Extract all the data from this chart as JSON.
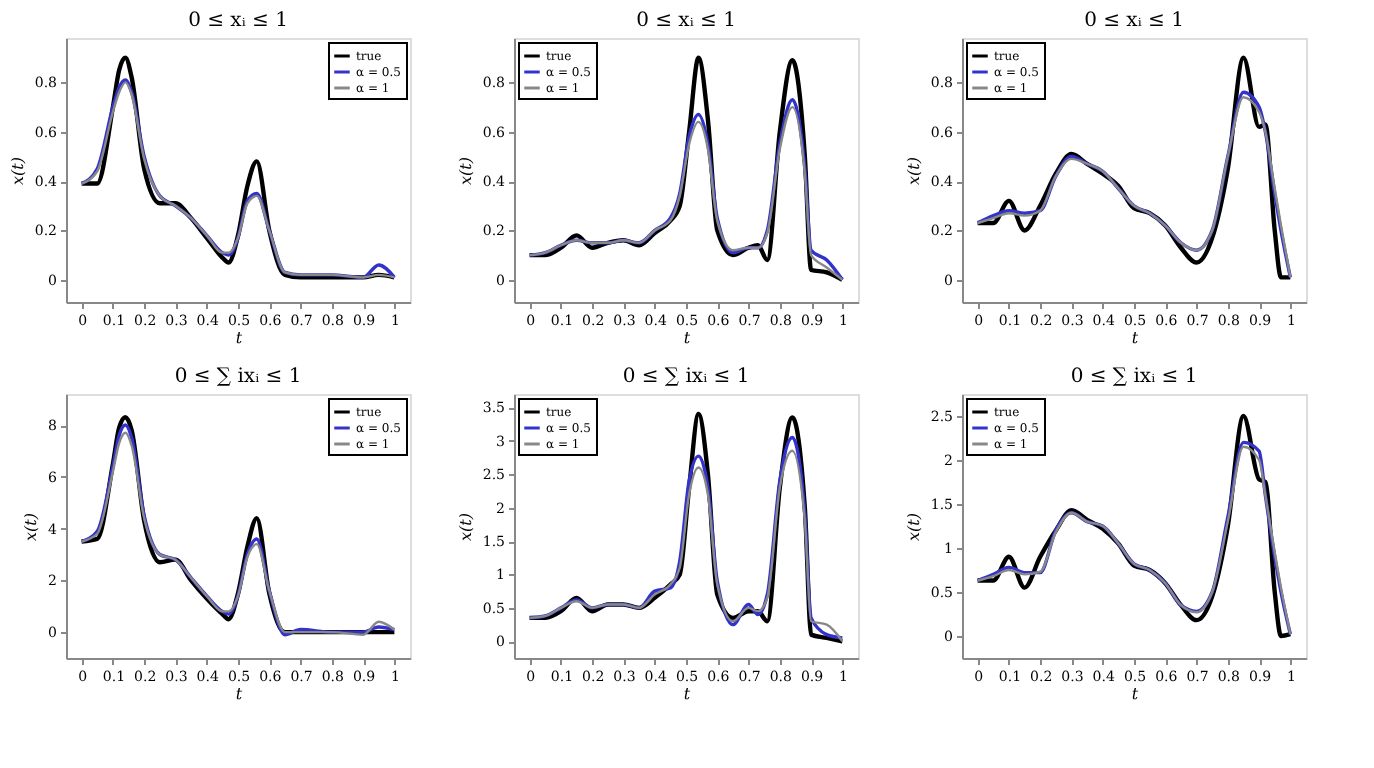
{
  "chart_data": [
    {
      "type": "line",
      "title": "0 ≤ xᵢ ≤ 1",
      "xlabel": "t",
      "ylabel": "x(t)",
      "xlim": [
        -0.05,
        1.05
      ],
      "xticks": [
        0,
        0.1,
        0.2,
        0.3,
        0.4,
        0.5,
        0.6,
        0.7,
        0.8,
        0.9,
        1
      ],
      "ylim": [
        -0.09,
        0.98
      ],
      "yticks": [
        0,
        0.2,
        0.4,
        0.6,
        0.8
      ],
      "legend": "top right",
      "grid": false,
      "marker": "none",
      "line_style": "solid",
      "x": [
        0,
        0.05,
        0.1,
        0.12,
        0.14,
        0.16,
        0.2,
        0.25,
        0.3,
        0.35,
        0.4,
        0.45,
        0.47,
        0.5,
        0.53,
        0.56,
        0.6,
        0.65,
        0.7,
        0.8,
        0.9,
        0.95,
        1
      ],
      "series": [
        {
          "name": "true",
          "color": "#000000",
          "values": [
            0.39,
            0.39,
            0.7,
            0.85,
            0.9,
            0.82,
            0.45,
            0.31,
            0.31,
            0.25,
            0.17,
            0.09,
            0.07,
            0.18,
            0.38,
            0.48,
            0.2,
            0.02,
            0.01,
            0.01,
            0.01,
            0.02,
            0.01
          ]
        },
        {
          "name": "α = 0.5",
          "color": "#3333cc",
          "values": [
            0.39,
            0.45,
            0.7,
            0.78,
            0.81,
            0.76,
            0.5,
            0.34,
            0.3,
            0.25,
            0.18,
            0.11,
            0.1,
            0.17,
            0.32,
            0.35,
            0.2,
            0.03,
            0.02,
            0.02,
            0.01,
            0.06,
            0.01
          ]
        },
        {
          "name": "α = 1",
          "color": "#888888",
          "values": [
            0.39,
            0.44,
            0.68,
            0.76,
            0.8,
            0.75,
            0.49,
            0.34,
            0.3,
            0.25,
            0.18,
            0.11,
            0.11,
            0.17,
            0.31,
            0.34,
            0.2,
            0.03,
            0.02,
            0.02,
            0.01,
            0.02,
            0.01
          ]
        }
      ]
    },
    {
      "type": "line",
      "title": "0 ≤ xᵢ ≤ 1",
      "xlabel": "t",
      "ylabel": "x(t)",
      "xlim": [
        -0.05,
        1.05
      ],
      "xticks": [
        0,
        0.1,
        0.2,
        0.3,
        0.4,
        0.5,
        0.6,
        0.7,
        0.8,
        0.9,
        1
      ],
      "ylim": [
        -0.09,
        0.98
      ],
      "yticks": [
        0,
        0.2,
        0.4,
        0.6,
        0.8
      ],
      "legend": "top left",
      "grid": false,
      "marker": "none",
      "line_style": "solid",
      "x": [
        0,
        0.05,
        0.1,
        0.15,
        0.2,
        0.25,
        0.3,
        0.35,
        0.4,
        0.45,
        0.48,
        0.51,
        0.54,
        0.57,
        0.6,
        0.65,
        0.7,
        0.73,
        0.76,
        0.8,
        0.84,
        0.88,
        0.9,
        0.95,
        1
      ],
      "series": [
        {
          "name": "true",
          "color": "#000000",
          "values": [
            0.1,
            0.1,
            0.13,
            0.18,
            0.13,
            0.15,
            0.16,
            0.14,
            0.19,
            0.24,
            0.3,
            0.6,
            0.9,
            0.65,
            0.2,
            0.1,
            0.13,
            0.14,
            0.08,
            0.6,
            0.89,
            0.5,
            0.04,
            0.03,
            0.0
          ]
        },
        {
          "name": "α = 0.5",
          "color": "#3333cc",
          "values": [
            0.1,
            0.11,
            0.14,
            0.16,
            0.15,
            0.15,
            0.16,
            0.15,
            0.2,
            0.25,
            0.35,
            0.58,
            0.67,
            0.55,
            0.25,
            0.11,
            0.13,
            0.13,
            0.2,
            0.55,
            0.73,
            0.45,
            0.12,
            0.08,
            0.0
          ]
        },
        {
          "name": "α = 1",
          "color": "#888888",
          "values": [
            0.1,
            0.11,
            0.14,
            0.16,
            0.15,
            0.15,
            0.16,
            0.15,
            0.2,
            0.24,
            0.34,
            0.55,
            0.64,
            0.53,
            0.24,
            0.12,
            0.13,
            0.13,
            0.19,
            0.53,
            0.7,
            0.43,
            0.1,
            0.05,
            0.0
          ]
        }
      ]
    },
    {
      "type": "line",
      "title": "0 ≤ xᵢ ≤ 1",
      "xlabel": "t",
      "ylabel": "x(t)",
      "xlim": [
        -0.05,
        1.05
      ],
      "xticks": [
        0,
        0.1,
        0.2,
        0.3,
        0.4,
        0.5,
        0.6,
        0.7,
        0.8,
        0.9,
        1
      ],
      "ylim": [
        -0.09,
        0.98
      ],
      "yticks": [
        0,
        0.2,
        0.4,
        0.6,
        0.8
      ],
      "legend": "top left",
      "grid": false,
      "marker": "none",
      "line_style": "solid",
      "x": [
        0,
        0.05,
        0.1,
        0.15,
        0.2,
        0.25,
        0.3,
        0.35,
        0.4,
        0.45,
        0.5,
        0.55,
        0.6,
        0.65,
        0.7,
        0.75,
        0.8,
        0.85,
        0.9,
        0.92,
        0.95,
        0.97,
        1
      ],
      "series": [
        {
          "name": "true",
          "color": "#000000",
          "values": [
            0.23,
            0.23,
            0.32,
            0.2,
            0.3,
            0.43,
            0.51,
            0.47,
            0.43,
            0.38,
            0.29,
            0.27,
            0.22,
            0.13,
            0.07,
            0.17,
            0.45,
            0.9,
            0.62,
            0.63,
            0.2,
            0.01,
            0.01
          ]
        },
        {
          "name": "α = 0.5",
          "color": "#3333cc",
          "values": [
            0.23,
            0.26,
            0.28,
            0.27,
            0.28,
            0.42,
            0.5,
            0.47,
            0.44,
            0.37,
            0.3,
            0.27,
            0.22,
            0.15,
            0.12,
            0.2,
            0.5,
            0.76,
            0.7,
            0.6,
            0.35,
            0.2,
            0.01
          ]
        },
        {
          "name": "α = 1",
          "color": "#888888",
          "values": [
            0.23,
            0.25,
            0.27,
            0.26,
            0.28,
            0.42,
            0.49,
            0.47,
            0.44,
            0.37,
            0.3,
            0.27,
            0.22,
            0.15,
            0.12,
            0.2,
            0.5,
            0.74,
            0.68,
            0.6,
            0.37,
            0.22,
            0.01
          ]
        }
      ]
    },
    {
      "type": "line",
      "title": "0 ≤ ∑ ixᵢ ≤ 1",
      "xlabel": "t",
      "ylabel": "x(t)",
      "xlim": [
        -0.05,
        1.05
      ],
      "xticks": [
        0,
        0.1,
        0.2,
        0.3,
        0.4,
        0.5,
        0.6,
        0.7,
        0.8,
        0.9,
        1
      ],
      "ylim": [
        -1,
        9.2
      ],
      "yticks": [
        0,
        2,
        4,
        6,
        8
      ],
      "legend": "top right",
      "grid": false,
      "marker": "none",
      "line_style": "solid",
      "x": [
        0,
        0.05,
        0.1,
        0.12,
        0.14,
        0.16,
        0.2,
        0.25,
        0.3,
        0.35,
        0.4,
        0.45,
        0.47,
        0.5,
        0.53,
        0.56,
        0.6,
        0.65,
        0.7,
        0.8,
        0.9,
        0.95,
        1
      ],
      "series": [
        {
          "name": "true",
          "color": "#000000",
          "values": [
            3.5,
            3.6,
            6.5,
            7.9,
            8.3,
            7.8,
            4.3,
            2.7,
            2.8,
            2.0,
            1.3,
            0.7,
            0.5,
            1.5,
            3.3,
            4.4,
            1.5,
            0,
            0,
            0,
            0,
            0,
            0
          ]
        },
        {
          "name": "α = 0.5",
          "color": "#3333cc",
          "values": [
            3.5,
            3.9,
            6.4,
            7.6,
            8.0,
            7.5,
            4.5,
            3.0,
            2.8,
            2.1,
            1.4,
            0.8,
            0.7,
            1.4,
            3.0,
            3.6,
            1.6,
            -0.1,
            0.1,
            0,
            0,
            0.2,
            0.1
          ]
        },
        {
          "name": "α = 1",
          "color": "#888888",
          "values": [
            3.5,
            3.8,
            6.2,
            7.3,
            7.7,
            7.2,
            4.4,
            3.0,
            2.8,
            2.1,
            1.4,
            0.8,
            0.8,
            1.4,
            2.9,
            3.4,
            1.6,
            0,
            0,
            0,
            -0.1,
            0.4,
            0.1
          ]
        }
      ]
    },
    {
      "type": "line",
      "title": "0 ≤ ∑ ixᵢ ≤ 1",
      "xlabel": "t",
      "ylabel": "x(t)",
      "xlim": [
        -0.05,
        1.05
      ],
      "xticks": [
        0,
        0.1,
        0.2,
        0.3,
        0.4,
        0.5,
        0.6,
        0.7,
        0.8,
        0.9,
        1
      ],
      "ylim": [
        -0.25,
        3.7
      ],
      "yticks": [
        0,
        0.5,
        1,
        1.5,
        2,
        2.5,
        3,
        3.5
      ],
      "legend": "top left",
      "grid": false,
      "marker": "none",
      "line_style": "solid",
      "x": [
        0,
        0.05,
        0.1,
        0.15,
        0.2,
        0.25,
        0.3,
        0.35,
        0.4,
        0.45,
        0.48,
        0.51,
        0.54,
        0.57,
        0.6,
        0.65,
        0.7,
        0.73,
        0.76,
        0.8,
        0.84,
        0.88,
        0.9,
        0.95,
        1
      ],
      "series": [
        {
          "name": "true",
          "color": "#000000",
          "values": [
            0.35,
            0.35,
            0.45,
            0.65,
            0.45,
            0.55,
            0.55,
            0.5,
            0.65,
            0.85,
            1.0,
            2.3,
            3.4,
            2.5,
            0.7,
            0.35,
            0.45,
            0.45,
            0.3,
            2.3,
            3.35,
            2.0,
            0.1,
            0.05,
            0
          ]
        },
        {
          "name": "α = 0.5",
          "color": "#3333cc",
          "values": [
            0.35,
            0.38,
            0.5,
            0.62,
            0.5,
            0.55,
            0.55,
            0.5,
            0.75,
            0.8,
            1.2,
            2.4,
            2.77,
            2.3,
            0.9,
            0.25,
            0.55,
            0.4,
            0.7,
            2.4,
            3.05,
            1.9,
            0.35,
            0.1,
            0.05
          ]
        },
        {
          "name": "α = 1",
          "color": "#888888",
          "values": [
            0.35,
            0.38,
            0.5,
            0.6,
            0.5,
            0.55,
            0.55,
            0.5,
            0.7,
            0.85,
            1.1,
            2.2,
            2.6,
            2.2,
            0.85,
            0.3,
            0.5,
            0.45,
            0.65,
            2.3,
            2.85,
            1.8,
            0.3,
            0.25,
            0
          ]
        }
      ]
    },
    {
      "type": "line",
      "title": "0 ≤ ∑ ixᵢ ≤ 1",
      "xlabel": "t",
      "ylabel": "x(t)",
      "xlim": [
        -0.05,
        1.05
      ],
      "xticks": [
        0,
        0.1,
        0.2,
        0.3,
        0.4,
        0.5,
        0.6,
        0.7,
        0.8,
        0.9,
        1
      ],
      "ylim": [
        -0.25,
        2.75
      ],
      "yticks": [
        0,
        0.5,
        1,
        1.5,
        2,
        2.5
      ],
      "legend": "top left",
      "grid": false,
      "marker": "none",
      "line_style": "solid",
      "x": [
        0,
        0.05,
        0.1,
        0.15,
        0.2,
        0.25,
        0.3,
        0.35,
        0.4,
        0.45,
        0.5,
        0.55,
        0.6,
        0.65,
        0.7,
        0.75,
        0.8,
        0.85,
        0.9,
        0.92,
        0.95,
        0.97,
        1
      ],
      "series": [
        {
          "name": "true",
          "color": "#000000",
          "values": [
            0.63,
            0.63,
            0.9,
            0.55,
            0.9,
            1.2,
            1.43,
            1.32,
            1.22,
            1.05,
            0.8,
            0.75,
            0.6,
            0.35,
            0.18,
            0.45,
            1.25,
            2.5,
            1.78,
            1.75,
            0.5,
            0,
            0.02
          ]
        },
        {
          "name": "α = 0.5",
          "color": "#3333cc",
          "values": [
            0.63,
            0.7,
            0.78,
            0.72,
            0.72,
            1.2,
            1.4,
            1.3,
            1.25,
            1.05,
            0.82,
            0.75,
            0.6,
            0.35,
            0.28,
            0.5,
            1.35,
            2.2,
            2.1,
            1.6,
            0.9,
            0.5,
            0.02
          ]
        },
        {
          "name": "α = 1",
          "color": "#888888",
          "values": [
            0.63,
            0.68,
            0.75,
            0.7,
            0.73,
            1.18,
            1.4,
            1.3,
            1.25,
            1.05,
            0.82,
            0.75,
            0.6,
            0.35,
            0.27,
            0.5,
            1.3,
            2.15,
            2.0,
            1.6,
            0.95,
            0.55,
            0.02
          ]
        }
      ]
    }
  ]
}
